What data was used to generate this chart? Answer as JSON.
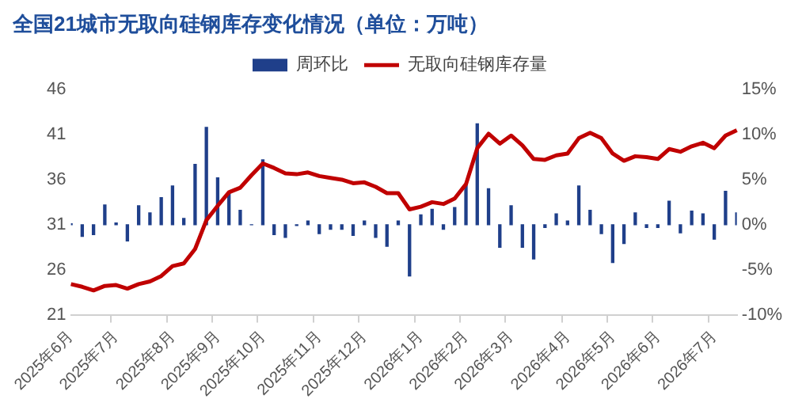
{
  "chart_data": {
    "type": "bar",
    "title": "全国21城市无取向硅钢库存变化情况（单位：万吨）",
    "categories": [
      "2025年6月",
      null,
      null,
      null,
      "2025年7月",
      null,
      null,
      null,
      null,
      "2025年8月",
      null,
      null,
      null,
      "2025年9月",
      null,
      null,
      null,
      "2025年10月",
      null,
      null,
      null,
      null,
      "2025年11月",
      null,
      null,
      null,
      "2025年12月",
      null,
      null,
      null,
      null,
      "2026年1月",
      null,
      null,
      null,
      "2026年2月",
      null,
      null,
      null,
      "2026年3月",
      null,
      null,
      null,
      null,
      "2026年4月",
      null,
      null,
      null,
      "2026年5月",
      null,
      null,
      null,
      "2026年6月",
      null,
      null,
      null,
      null,
      "2026年7月",
      null,
      null
    ],
    "series": [
      {
        "name": "周环比",
        "axis": "y2",
        "color": "#1f3f8a",
        "values": [
          0.1,
          -1.3,
          -1.1,
          2.2,
          0.2,
          -1.8,
          2.1,
          1.3,
          3.0,
          4.3,
          0.7,
          6.7,
          10.8,
          5.2,
          3.5,
          1.6,
          0,
          7.2,
          -1.1,
          -1.4,
          -0.1,
          0.4,
          -1.0,
          -0.5,
          -0.5,
          -1.2,
          0.4,
          -1.4,
          -2.4,
          0.4,
          -5.7,
          1.1,
          1.7,
          -0.5,
          1.9,
          4.5,
          11.2,
          4.0,
          -2.5,
          2.1,
          -2.5,
          -3.8,
          -0.3,
          1.2,
          0.4,
          4.3,
          1.6,
          -1.0,
          -4.2,
          -2.1,
          1.3,
          -0.3,
          -0.3,
          2.6,
          -0.9,
          1.5,
          1.2,
          -1.6,
          3.7,
          1.3
        ]
      },
      {
        "name": "无取向硅钢库存量",
        "type": "line",
        "color": "#c00000",
        "values": [
          24.4,
          24.1,
          23.7,
          24.2,
          24.3,
          23.9,
          24.4,
          24.7,
          25.3,
          26.4,
          26.7,
          28.3,
          31.5,
          33.1,
          34.6,
          35.1,
          36.5,
          37.8,
          37.3,
          36.7,
          36.6,
          36.8,
          36.4,
          36.2,
          36.0,
          35.6,
          35.7,
          35.2,
          34.5,
          34.5,
          32.7,
          33.0,
          33.5,
          33.3,
          33.9,
          35.5,
          39.5,
          41.1,
          40.0,
          40.9,
          39.8,
          38.3,
          38.2,
          38.7,
          38.9,
          40.6,
          41.2,
          40.6,
          38.9,
          38.1,
          38.6,
          38.5,
          38.3,
          39.4,
          39.1,
          39.7,
          40.1,
          39.5,
          40.9,
          41.5
        ]
      }
    ],
    "ylim": [
      21,
      46
    ],
    "yticks": [
      21,
      26,
      31,
      36,
      41,
      46
    ],
    "y2lim": [
      -10,
      15
    ],
    "y2ticks": [
      {
        "value": -10,
        "label": "-10%"
      },
      {
        "value": -5,
        "label": "-5%"
      },
      {
        "value": 0,
        "label": "0%"
      },
      {
        "value": 5,
        "label": "5%"
      },
      {
        "value": 10,
        "label": "10%"
      },
      {
        "value": 15,
        "label": "15%"
      }
    ],
    "legend": "top",
    "grid": false,
    "marker": "none"
  }
}
